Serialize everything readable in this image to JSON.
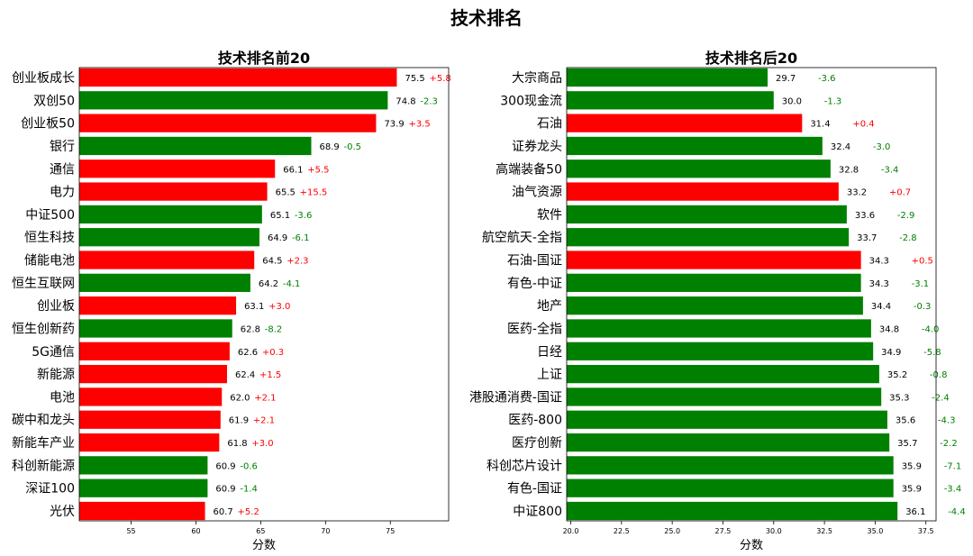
{
  "suptitle": "技术排名",
  "colors": {
    "up": "#ff0000",
    "down": "#008000"
  },
  "chart_data": [
    {
      "type": "bar",
      "orientation": "horizontal",
      "title": "技术排名前20",
      "xlabel": "分数",
      "xlim": [
        51,
        79.5
      ],
      "xticks": [
        "55",
        "60",
        "65",
        "70",
        "75"
      ],
      "categories": [
        "创业板成长",
        "双创50",
        "创业板50",
        "银行",
        "通信",
        "电力",
        "中证500",
        "恒生科技",
        "储能电池",
        "恒生互联网",
        "创业板",
        "恒生创新药",
        "5G通信",
        "新能源",
        "电池",
        "碳中和龙头",
        "新能车产业",
        "科创新能源",
        "深证100",
        "光伏"
      ],
      "values": [
        75.5,
        74.8,
        73.9,
        68.9,
        66.1,
        65.5,
        65.1,
        64.9,
        64.5,
        64.2,
        63.1,
        62.8,
        62.6,
        62.4,
        62.0,
        61.9,
        61.8,
        60.9,
        60.9,
        60.7
      ],
      "value_labels": [
        "75.5",
        "74.8",
        "73.9",
        "68.9",
        "66.1",
        "65.5",
        "65.1",
        "64.9",
        "64.5",
        "64.2",
        "63.1",
        "62.8",
        "62.6",
        "62.4",
        "62.0",
        "61.9",
        "61.8",
        "60.9",
        "60.9",
        "60.7"
      ],
      "changes": [
        "+5.8",
        "-2.3",
        "+3.5",
        "-0.5",
        "+5.5",
        "+15.5",
        "-3.6",
        "-6.1",
        "+2.3",
        "-4.1",
        "+3.0",
        "-8.2",
        "+0.3",
        "+1.5",
        "+2.1",
        "+2.1",
        "+3.0",
        "-0.6",
        "-1.4",
        "+5.2"
      ]
    },
    {
      "type": "bar",
      "orientation": "horizontal",
      "title": "技术排名后20",
      "xlabel": "分数",
      "xlim": [
        19.8,
        38.0
      ],
      "xticks": [
        "20.0",
        "22.5",
        "25.0",
        "27.5",
        "30.0",
        "32.5",
        "35.0",
        "37.5"
      ],
      "categories": [
        "大宗商品",
        "300现金流",
        "石油",
        "证券龙头",
        "高端装备50",
        "油气资源",
        "软件",
        "航空航天-全指",
        "石油-国证",
        "有色-中证",
        "地产",
        "医药-全指",
        "日经",
        "上证",
        "港股通消费-国证",
        "医药-800",
        "医疗创新",
        "科创芯片设计",
        "有色-国证",
        "中证800"
      ],
      "values": [
        29.7,
        30.0,
        31.4,
        32.4,
        32.8,
        33.2,
        33.6,
        33.7,
        34.3,
        34.3,
        34.4,
        34.8,
        34.9,
        35.2,
        35.3,
        35.6,
        35.7,
        35.9,
        35.9,
        36.1
      ],
      "value_labels": [
        "29.7",
        "30.0",
        "31.4",
        "32.4",
        "32.8",
        "33.2",
        "33.6",
        "33.7",
        "34.3",
        "34.3",
        "34.4",
        "34.8",
        "34.9",
        "35.2",
        "35.3",
        "35.6",
        "35.7",
        "35.9",
        "35.9",
        "36.1"
      ],
      "changes": [
        "-3.6",
        "-1.3",
        "+0.4",
        "-3.0",
        "-3.4",
        "+0.7",
        "-2.9",
        "-2.8",
        "+0.5",
        "-3.1",
        "-0.3",
        "-4.0",
        "-5.8",
        "-0.8",
        "-2.4",
        "-4.3",
        "-2.2",
        "-7.1",
        "-3.4",
        "-4.4"
      ]
    }
  ]
}
